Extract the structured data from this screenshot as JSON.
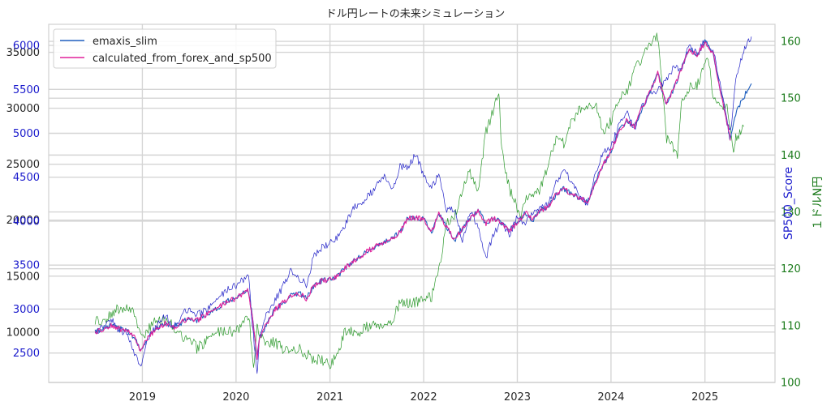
{
  "chart_data": {
    "type": "line",
    "title": "ドル円レートの未来シミュレーション",
    "x_ticks": [
      "2019",
      "2020",
      "2021",
      "2022",
      "2023",
      "2024",
      "2025"
    ],
    "left_axis": {
      "ylabel": "",
      "ylim": [
        5500,
        37500
      ],
      "ticks": [
        "10000",
        "15000",
        "20000",
        "25000",
        "30000",
        "35000"
      ]
    },
    "sp500_axis": {
      "ylabel": "SP500_Score",
      "ylim": [
        2165,
        6240
      ],
      "ticks": [
        "2500",
        "3000",
        "3500",
        "4000",
        "4500",
        "5000",
        "5500",
        "6000"
      ]
    },
    "right_axis": {
      "ylabel": "１ドルN円",
      "ylim": [
        100,
        163
      ],
      "ticks": [
        "100",
        "110",
        "120",
        "130",
        "140",
        "150",
        "160"
      ]
    },
    "legend": {
      "placement": "top-left",
      "entries": [
        "emaxis_slim",
        "calculated_from_forex_and_sp500"
      ]
    },
    "colors": {
      "emaxis": "#1f5fbf",
      "calc": "#e0209a",
      "sp500": "#2323c8",
      "forex": "#2e9a2e"
    },
    "series": [
      {
        "name": "emaxis_slim",
        "axis": "left",
        "x": [
          "2018-07-01",
          "2018-08-01",
          "2018-09-01",
          "2018-10-01",
          "2018-11-01",
          "2018-12-01",
          "2018-12-25",
          "2019-01-15",
          "2019-02-01",
          "2019-03-01",
          "2019-04-01",
          "2019-05-01",
          "2019-06-01",
          "2019-07-01",
          "2019-08-01",
          "2019-09-01",
          "2019-10-01",
          "2019-11-01",
          "2019-12-01",
          "2020-01-01",
          "2020-02-15",
          "2020-03-01",
          "2020-03-23",
          "2020-04-01",
          "2020-05-01",
          "2020-06-01",
          "2020-07-01",
          "2020-08-01",
          "2020-09-01",
          "2020-10-01",
          "2020-11-01",
          "2020-12-01",
          "2021-01-01",
          "2021-02-01",
          "2021-03-01",
          "2021-04-01",
          "2021-05-01",
          "2021-06-01",
          "2021-07-01",
          "2021-08-01",
          "2021-09-01",
          "2021-10-01",
          "2021-11-01",
          "2021-12-01",
          "2022-01-01",
          "2022-02-01",
          "2022-03-01",
          "2022-04-01",
          "2022-05-01",
          "2022-06-01",
          "2022-07-01",
          "2022-08-01",
          "2022-09-01",
          "2022-10-01",
          "2022-11-01",
          "2022-12-01",
          "2023-01-01",
          "2023-02-01",
          "2023-03-01",
          "2023-04-01",
          "2023-05-01",
          "2023-06-01",
          "2023-07-01",
          "2023-08-01",
          "2023-09-01",
          "2023-10-01",
          "2023-11-01",
          "2023-12-01",
          "2024-01-01",
          "2024-02-01",
          "2024-03-01",
          "2024-04-01",
          "2024-05-01",
          "2024-06-01",
          "2024-07-01",
          "2024-08-01",
          "2024-09-01",
          "2024-10-01",
          "2024-11-01",
          "2024-12-01",
          "2025-01-01",
          "2025-02-01",
          "2025-03-01",
          "2025-04-01",
          "2025-04-10",
          "2025-05-01",
          "2025-06-01",
          "2025-07-01"
        ],
        "values": [
          10000,
          10300,
          10600,
          10300,
          10200,
          9500,
          8400,
          9300,
          9800,
          10300,
          10800,
          10400,
          10800,
          11300,
          11000,
          11500,
          11800,
          12300,
          12800,
          13000,
          13800,
          12000,
          7700,
          9500,
          10800,
          12000,
          12600,
          13300,
          13500,
          13000,
          14200,
          14600,
          14700,
          15000,
          15700,
          16300,
          16800,
          17300,
          17700,
          18000,
          18400,
          18900,
          20200,
          20200,
          20100,
          18900,
          20600,
          19400,
          18200,
          19300,
          20100,
          20900,
          19700,
          20200,
          19700,
          19100,
          19700,
          20700,
          20000,
          20900,
          21100,
          22300,
          22800,
          22300,
          22000,
          21600,
          23400,
          24900,
          26200,
          27900,
          28900,
          28400,
          30000,
          31500,
          33200,
          30400,
          31700,
          33500,
          35300,
          34700,
          35900,
          35000,
          31800,
          28300,
          27100,
          29600,
          31000,
          32200
        ]
      },
      {
        "name": "calculated_from_forex_and_sp500",
        "axis": "left",
        "x": [
          "2018-07-01",
          "2018-08-01",
          "2018-09-01",
          "2018-10-01",
          "2018-11-01",
          "2018-12-01",
          "2018-12-25",
          "2019-01-15",
          "2019-02-01",
          "2019-03-01",
          "2019-04-01",
          "2019-05-01",
          "2019-06-01",
          "2019-07-01",
          "2019-08-01",
          "2019-09-01",
          "2019-10-01",
          "2019-11-01",
          "2019-12-01",
          "2020-01-01",
          "2020-02-15",
          "2020-03-01",
          "2020-03-23",
          "2020-04-01",
          "2020-05-01",
          "2020-06-01",
          "2020-07-01",
          "2020-08-01",
          "2020-09-01",
          "2020-10-01",
          "2020-11-01",
          "2020-12-01",
          "2021-01-01",
          "2021-02-01",
          "2021-03-01",
          "2021-04-01",
          "2021-05-01",
          "2021-06-01",
          "2021-07-01",
          "2021-08-01",
          "2021-09-01",
          "2021-10-01",
          "2021-11-01",
          "2021-12-01",
          "2022-01-01",
          "2022-02-01",
          "2022-03-01",
          "2022-04-01",
          "2022-05-01",
          "2022-06-01",
          "2022-07-01",
          "2022-08-01",
          "2022-09-01",
          "2022-10-01",
          "2022-11-01",
          "2022-12-01",
          "2023-01-01",
          "2023-02-01",
          "2023-03-01",
          "2023-04-01",
          "2023-05-01",
          "2023-06-01",
          "2023-07-01",
          "2023-08-01",
          "2023-09-01",
          "2023-10-01",
          "2023-11-01",
          "2023-12-01",
          "2024-01-01",
          "2024-02-01",
          "2024-03-01",
          "2024-04-01",
          "2024-05-01",
          "2024-06-01",
          "2024-07-01",
          "2024-08-01",
          "2024-09-01",
          "2024-10-01",
          "2024-11-01",
          "2024-12-01",
          "2025-01-01",
          "2025-02-01",
          "2025-03-01",
          "2025-04-01",
          "2025-04-10"
        ],
        "values": [
          10000,
          10300,
          10600,
          10300,
          10200,
          9500,
          8400,
          9300,
          9800,
          10300,
          10800,
          10400,
          10800,
          11300,
          11000,
          11500,
          11800,
          12300,
          12800,
          13000,
          13800,
          12000,
          7700,
          9500,
          10800,
          12000,
          12600,
          13300,
          13500,
          13000,
          14200,
          14600,
          14700,
          15000,
          15700,
          16300,
          16800,
          17300,
          17700,
          18000,
          18400,
          18900,
          20200,
          20200,
          20100,
          18900,
          20600,
          19400,
          18200,
          19300,
          20100,
          20900,
          19700,
          20200,
          19700,
          19100,
          19700,
          20700,
          20000,
          20900,
          21100,
          22300,
          22800,
          22300,
          22000,
          21600,
          23400,
          24900,
          26200,
          27900,
          28900,
          28400,
          30000,
          31500,
          33200,
          30400,
          31700,
          33500,
          35300,
          34700,
          35900,
          35000,
          31800,
          28300,
          27100
        ]
      },
      {
        "name": "SP500_Score",
        "axis": "sp500",
        "x": [
          "2018-07-01",
          "2018-08-01",
          "2018-09-01",
          "2018-10-01",
          "2018-11-01",
          "2018-12-01",
          "2018-12-25",
          "2019-01-15",
          "2019-02-01",
          "2019-03-01",
          "2019-04-01",
          "2019-05-01",
          "2019-06-01",
          "2019-07-01",
          "2019-08-01",
          "2019-09-01",
          "2019-10-01",
          "2019-11-01",
          "2019-12-01",
          "2020-01-01",
          "2020-02-19",
          "2020-03-01",
          "2020-03-23",
          "2020-04-01",
          "2020-05-01",
          "2020-06-01",
          "2020-07-01",
          "2020-08-01",
          "2020-09-01",
          "2020-10-01",
          "2020-11-01",
          "2020-12-01",
          "2021-01-01",
          "2021-02-01",
          "2021-03-01",
          "2021-04-01",
          "2021-05-01",
          "2021-06-01",
          "2021-07-01",
          "2021-08-01",
          "2021-09-01",
          "2021-10-01",
          "2021-11-01",
          "2021-12-01",
          "2022-01-01",
          "2022-02-01",
          "2022-03-01",
          "2022-04-01",
          "2022-05-01",
          "2022-06-01",
          "2022-07-01",
          "2022-08-01",
          "2022-09-01",
          "2022-10-01",
          "2022-11-01",
          "2022-12-01",
          "2023-01-01",
          "2023-02-01",
          "2023-03-01",
          "2023-04-01",
          "2023-05-01",
          "2023-06-01",
          "2023-07-01",
          "2023-08-01",
          "2023-09-01",
          "2023-10-01",
          "2023-11-01",
          "2023-12-01",
          "2024-01-01",
          "2024-02-01",
          "2024-03-01",
          "2024-04-01",
          "2024-05-01",
          "2024-06-01",
          "2024-07-01",
          "2024-08-01",
          "2024-09-01",
          "2024-10-01",
          "2024-11-01",
          "2024-12-01",
          "2025-01-01",
          "2025-02-01",
          "2025-03-01",
          "2025-04-01",
          "2025-04-10",
          "2025-05-01",
          "2025-06-01",
          "2025-07-01"
        ],
        "values": [
          2720,
          2810,
          2900,
          2750,
          2740,
          2480,
          2350,
          2600,
          2720,
          2820,
          2940,
          2780,
          2920,
          3010,
          2930,
          2980,
          3040,
          3140,
          3230,
          3270,
          3390,
          2950,
          2240,
          2700,
          2950,
          3100,
          3250,
          3450,
          3360,
          3280,
          3620,
          3700,
          3750,
          3820,
          3950,
          4150,
          4210,
          4290,
          4400,
          4520,
          4360,
          4620,
          4610,
          4770,
          4520,
          4380,
          4530,
          4130,
          4130,
          3780,
          4100,
          3950,
          3580,
          3860,
          3990,
          3840,
          4050,
          3970,
          4080,
          4160,
          4180,
          4430,
          4580,
          4450,
          4280,
          4190,
          4560,
          4770,
          4850,
          5100,
          5250,
          5050,
          5300,
          5450,
          5500,
          5600,
          5750,
          5720,
          6020,
          5900,
          6060,
          5950,
          5600,
          5100,
          5000,
          5600,
          5950,
          6100
        ]
      },
      {
        "name": "１ドルN円",
        "axis": "right",
        "x": [
          "2018-07-01",
          "2018-08-01",
          "2018-09-01",
          "2018-10-01",
          "2018-11-01",
          "2018-12-01",
          "2019-01-03",
          "2019-02-01",
          "2019-03-01",
          "2019-04-01",
          "2019-05-01",
          "2019-06-01",
          "2019-07-01",
          "2019-08-01",
          "2019-09-01",
          "2019-10-01",
          "2019-11-01",
          "2019-12-01",
          "2020-01-01",
          "2020-02-20",
          "2020-03-09",
          "2020-03-23",
          "2020-04-01",
          "2020-05-01",
          "2020-06-01",
          "2020-07-01",
          "2020-08-01",
          "2020-09-01",
          "2020-10-01",
          "2020-11-01",
          "2020-12-01",
          "2021-01-01",
          "2021-02-01",
          "2021-03-01",
          "2021-04-01",
          "2021-05-01",
          "2021-06-01",
          "2021-07-01",
          "2021-08-01",
          "2021-09-01",
          "2021-10-01",
          "2021-11-01",
          "2021-12-01",
          "2022-01-01",
          "2022-02-01",
          "2022-03-01",
          "2022-04-01",
          "2022-05-01",
          "2022-06-01",
          "2022-07-01",
          "2022-08-01",
          "2022-09-01",
          "2022-10-21",
          "2022-11-01",
          "2022-12-01",
          "2023-01-16",
          "2023-02-01",
          "2023-03-01",
          "2023-04-01",
          "2023-05-01",
          "2023-06-01",
          "2023-07-01",
          "2023-08-01",
          "2023-09-01",
          "2023-10-01",
          "2023-11-01",
          "2023-12-01",
          "2024-01-01",
          "2024-02-01",
          "2024-03-01",
          "2024-04-01",
          "2024-05-01",
          "2024-06-01",
          "2024-07-01",
          "2024-08-05",
          "2024-09-16",
          "2024-10-01",
          "2024-11-01",
          "2024-12-01",
          "2025-01-10",
          "2025-02-01",
          "2025-03-01",
          "2025-04-01",
          "2025-04-22",
          "2025-05-01",
          "2025-06-01"
        ],
        "values": [
          111,
          111,
          112,
          113,
          113,
          112,
          108,
          110,
          111,
          111,
          110,
          108,
          108,
          106,
          107,
          108,
          109,
          109,
          109,
          112,
          102,
          111,
          108,
          107,
          107,
          106,
          106,
          106,
          105,
          104,
          104,
          103,
          105,
          109,
          109,
          109,
          110,
          110,
          110,
          111,
          114,
          114,
          114,
          115,
          115,
          120,
          128,
          129,
          134,
          137,
          134,
          144,
          151,
          141,
          134,
          129,
          132,
          133,
          134,
          138,
          143,
          142,
          146,
          148,
          149,
          149,
          144,
          146,
          150,
          151,
          155,
          157,
          160,
          161,
          143,
          140,
          149,
          152,
          152,
          158,
          151,
          149,
          148,
          140,
          143,
          145
        ]
      }
    ]
  }
}
